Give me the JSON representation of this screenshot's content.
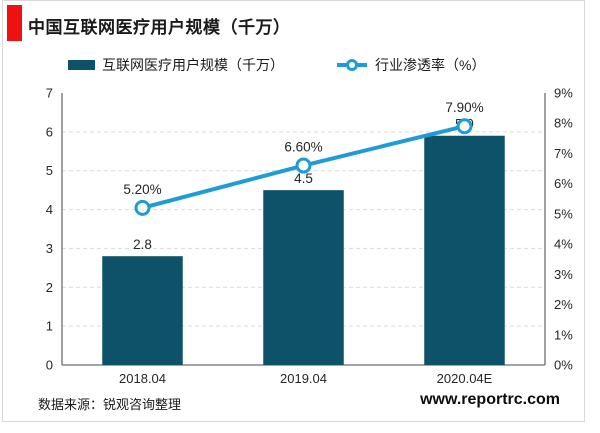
{
  "page": {
    "title": "中国互联网医疗用户规模（千万）",
    "source_note": "数据来源：锐观咨询整理",
    "website": "www.reportrc.com"
  },
  "colors": {
    "accent_red": "#ee1111",
    "bar": "#0d5269",
    "line": "#1e9cd6",
    "grid": "#d9d9d9",
    "axis": "#6e6e6e",
    "text": "#262626"
  },
  "legend": [
    {
      "label": "互联网医疗用户规模（千万）",
      "marker": "bar-swatch"
    },
    {
      "label": "行业渗透率（%）",
      "marker": "line-circle-swatch"
    }
  ],
  "chart_data": {
    "type": "bar",
    "subtype": "bar+line combo, dual axis",
    "title": "中国互联网医疗用户规模（千万）",
    "categories": [
      "2018.04",
      "2019.04",
      "2020.04E"
    ],
    "series": [
      {
        "name": "互联网医疗用户规模（千万）",
        "type": "bar",
        "axis": "left",
        "values": [
          2.8,
          4.5,
          5.9
        ],
        "labels": [
          "2.8",
          "4.5",
          "5.9"
        ]
      },
      {
        "name": "行业渗透率（%）",
        "type": "line",
        "axis": "right",
        "values": [
          5.2,
          6.6,
          7.9
        ],
        "labels": [
          "5.20%",
          "6.60%",
          "7.90%"
        ]
      }
    ],
    "left_axis": {
      "min": 0,
      "max": 7,
      "step": 1,
      "ticks": [
        "0",
        "1",
        "2",
        "3",
        "4",
        "5",
        "6",
        "7"
      ]
    },
    "right_axis": {
      "min": 0,
      "max": 9,
      "step": 1,
      "ticks": [
        "0%",
        "1%",
        "2%",
        "3%",
        "4%",
        "5%",
        "6%",
        "7%",
        "8%",
        "9%"
      ]
    },
    "grid": "horizontal dashed",
    "legend_position": "top"
  }
}
